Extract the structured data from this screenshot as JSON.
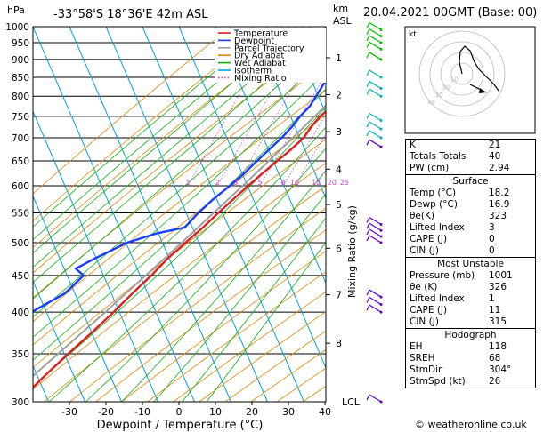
{
  "header": {
    "location": "-33°58'S  18°36'E  42m  ASL",
    "datetime": "20.04.2021  00GMT  (Base: 00)",
    "hpa_label": "hPa",
    "km_label": "km",
    "asl_label": "ASL"
  },
  "chart_data": {
    "type": "line",
    "title": "",
    "xlabel": "Dewpoint / Temperature (°C)",
    "ylabel": "hPa",
    "xlim": [
      -35,
      40
    ],
    "x_ticks": [
      -30,
      -20,
      -10,
      0,
      10,
      20,
      30,
      40
    ],
    "ylim": [
      1000,
      300
    ],
    "pressure_ticks": [
      300,
      350,
      400,
      450,
      500,
      550,
      600,
      650,
      700,
      750,
      800,
      850,
      900,
      950,
      1000
    ],
    "km_ticks": [
      {
        "km": "8",
        "p": 362
      },
      {
        "km": "7",
        "p": 423
      },
      {
        "km": "6",
        "p": 491
      },
      {
        "km": "5",
        "p": 565
      },
      {
        "km": "4",
        "p": 633
      },
      {
        "km": "3",
        "p": 714
      },
      {
        "km": "2",
        "p": 804
      },
      {
        "km": "1",
        "p": 905
      }
    ],
    "lcl_label": "LCL",
    "lcl_p": 1000,
    "mixing_ratio_axis_label": "Mixing Ratio (g/kg)",
    "mixing_ratio_labels": [
      "1",
      "2",
      "3",
      "5",
      "8",
      "10",
      "15",
      "20",
      "25"
    ],
    "mixing_ratio_values": [
      1,
      2,
      3,
      5,
      8,
      10,
      15,
      20,
      25
    ],
    "legend": [
      {
        "name": "Temperature",
        "color": "#e02020"
      },
      {
        "name": "Dewpoint",
        "color": "#1a3cff"
      },
      {
        "name": "Parcel Trajectory",
        "color": "#a0a0a0"
      },
      {
        "name": "Dry Adiabat",
        "color": "#e08800"
      },
      {
        "name": "Wet Adiabat",
        "color": "#10b010"
      },
      {
        "name": "Isotherm",
        "color": "#00a0e0"
      },
      {
        "name": "Mixing Ratio",
        "color": "#d040d0"
      }
    ],
    "series": [
      {
        "name": "Temperature",
        "color": "#e02020",
        "points": [
          [
            1000,
            18.2
          ],
          [
            975,
            16.5
          ],
          [
            950,
            15.5
          ],
          [
            925,
            13.8
          ],
          [
            900,
            13.5
          ],
          [
            875,
            14.2
          ],
          [
            850,
            13.0
          ],
          [
            825,
            11.5
          ],
          [
            800,
            9.5
          ],
          [
            775,
            7.2
          ],
          [
            750,
            5.0
          ],
          [
            725,
            3.8
          ],
          [
            700,
            3.0
          ],
          [
            675,
            1.0
          ],
          [
            650,
            -1.5
          ],
          [
            625,
            -4.0
          ],
          [
            600,
            -6.5
          ],
          [
            575,
            -9.0
          ],
          [
            550,
            -11.5
          ],
          [
            525,
            -14.0
          ],
          [
            500,
            -17.0
          ],
          [
            475,
            -20.0
          ],
          [
            450,
            -22.5
          ],
          [
            425,
            -25.5
          ],
          [
            400,
            -28.5
          ],
          [
            375,
            -32.0
          ],
          [
            350,
            -36.0
          ],
          [
            325,
            -40.0
          ],
          [
            300,
            -44.0
          ]
        ]
      },
      {
        "name": "Dewpoint",
        "color": "#1a3cff",
        "points": [
          [
            1000,
            16.9
          ],
          [
            975,
            15.0
          ],
          [
            950,
            13.0
          ],
          [
            925,
            11.0
          ],
          [
            900,
            8.0
          ],
          [
            875,
            5.0
          ],
          [
            850,
            2.5
          ],
          [
            825,
            2.0
          ],
          [
            800,
            1.5
          ],
          [
            775,
            1.0
          ],
          [
            750,
            -0.5
          ],
          [
            725,
            -1.5
          ],
          [
            700,
            -3.0
          ],
          [
            675,
            -5.0
          ],
          [
            650,
            -7.0
          ],
          [
            625,
            -9.0
          ],
          [
            600,
            -11.5
          ],
          [
            575,
            -14.5
          ],
          [
            550,
            -17.0
          ],
          [
            525,
            -19.0
          ],
          [
            515,
            -26.0
          ],
          [
            500,
            -33.0
          ],
          [
            475,
            -40.0
          ],
          [
            460,
            -44.0
          ],
          [
            450,
            -41.0
          ],
          [
            425,
            -44.0
          ],
          [
            400,
            -51.0
          ],
          [
            375,
            -50.0
          ],
          [
            350,
            -49.0
          ],
          [
            325,
            -54.0
          ],
          [
            300,
            -60.0
          ]
        ]
      },
      {
        "name": "Parcel Trajectory",
        "color": "#a0a0a0",
        "points": [
          [
            1000,
            18.2
          ],
          [
            950,
            15.5
          ],
          [
            900,
            12.8
          ],
          [
            850,
            9.8
          ],
          [
            800,
            6.8
          ],
          [
            750,
            3.5
          ],
          [
            700,
            0.0
          ],
          [
            650,
            -3.8
          ],
          [
            600,
            -8.0
          ],
          [
            550,
            -12.8
          ],
          [
            500,
            -18.0
          ],
          [
            450,
            -24.0
          ],
          [
            400,
            -30.8
          ],
          [
            350,
            -38.8
          ],
          [
            300,
            -48.0
          ]
        ]
      }
    ]
  },
  "hodograph": {
    "label": "kt",
    "ring_labels": [
      "10",
      "20",
      "30",
      "40"
    ]
  },
  "indices": {
    "top": [
      {
        "label": "K",
        "value": "21"
      },
      {
        "label": "Totals Totals",
        "value": "40"
      },
      {
        "label": "PW (cm)",
        "value": "2.94"
      }
    ],
    "surface": {
      "title": "Surface",
      "rows": [
        {
          "label": "Temp (°C)",
          "value": "18.2"
        },
        {
          "label": "Dewp (°C)",
          "value": "16.9"
        },
        {
          "label": "θe(K)",
          "value": "323"
        },
        {
          "label": "Lifted Index",
          "value": "3"
        },
        {
          "label": "CAPE (J)",
          "value": "0"
        },
        {
          "label": "CIN (J)",
          "value": "0"
        }
      ]
    },
    "unstable": {
      "title": "Most Unstable",
      "rows": [
        {
          "label": "Pressure (mb)",
          "value": "1001"
        },
        {
          "label": "θe (K)",
          "value": "326"
        },
        {
          "label": "Lifted Index",
          "value": "1"
        },
        {
          "label": "CAPE (J)",
          "value": "11"
        },
        {
          "label": "CIN (J)",
          "value": "315"
        }
      ]
    },
    "hodo": {
      "title": "Hodograph",
      "rows": [
        {
          "label": "EH",
          "value": "118"
        },
        {
          "label": "SREH",
          "value": "68"
        },
        {
          "label": "StmDir",
          "value": "304°"
        },
        {
          "label": "StmSpd (kt)",
          "value": "26"
        }
      ]
    }
  },
  "footer": {
    "copyright": "© weatheronline.co.uk"
  }
}
